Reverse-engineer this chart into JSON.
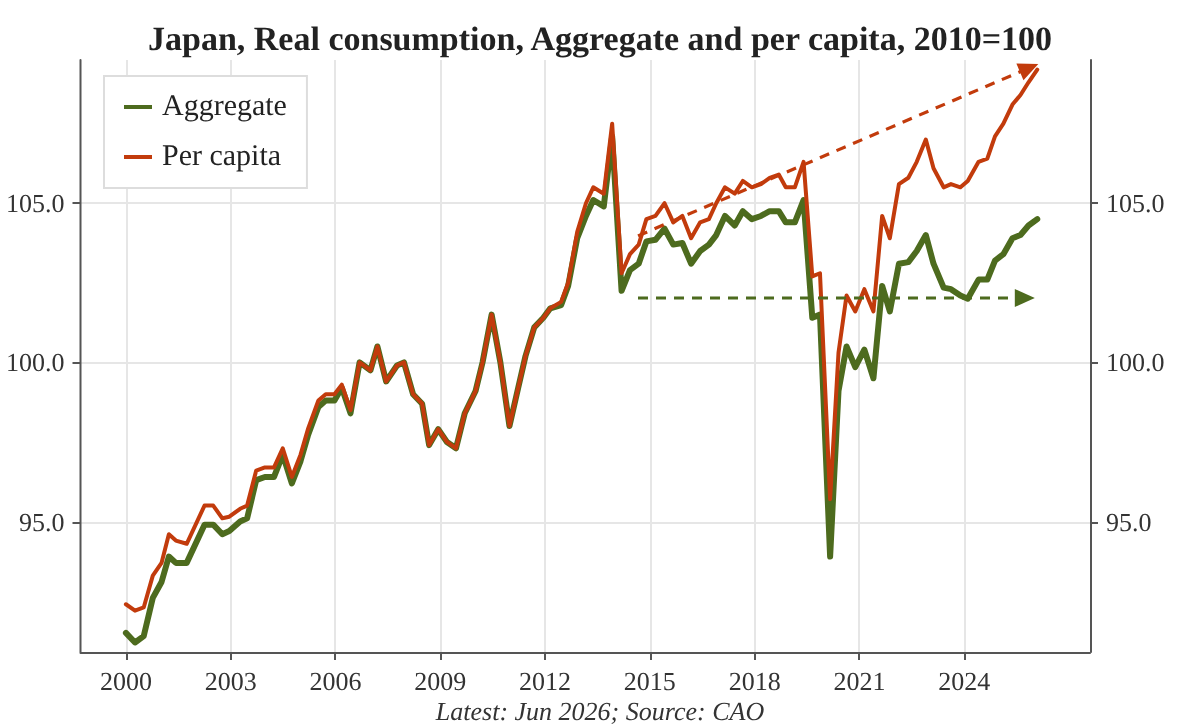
{
  "chart_data": {
    "type": "line",
    "title": "Japan, Real consumption, Aggregate and per capita, 2010=100",
    "annotations": [
      "Latest: Jun 2026; Source: CAO"
    ],
    "x": [
      2000.0,
      2000.26,
      2000.51,
      2000.77,
      2001.02,
      2001.23,
      2001.43,
      2001.74,
      2002.25,
      2002.5,
      2002.76,
      2002.96,
      2003.27,
      2003.47,
      2003.73,
      2003.98,
      2004.24,
      2004.49,
      2004.75,
      2005.0,
      2005.21,
      2005.51,
      2005.72,
      2005.97,
      2006.18,
      2006.43,
      2006.69,
      2007.0,
      2007.2,
      2007.45,
      2007.76,
      2007.96,
      2008.22,
      2008.48,
      2008.68,
      2008.94,
      2009.19,
      2009.45,
      2009.7,
      2010.01,
      2010.21,
      2010.47,
      2010.72,
      2010.98,
      2011.23,
      2011.44,
      2011.69,
      2011.95,
      2012.15,
      2012.46,
      2012.66,
      2012.92,
      2013.17,
      2013.38,
      2013.68,
      2013.92,
      2014.19,
      2014.43,
      2014.68,
      2014.9,
      2015.16,
      2015.42,
      2015.67,
      2015.93,
      2016.18,
      2016.44,
      2016.69,
      2016.9,
      2017.15,
      2017.43,
      2017.66,
      2017.92,
      2018.18,
      2018.43,
      2018.69,
      2018.89,
      2019.15,
      2019.4,
      2019.65,
      2019.87,
      2020.16,
      2020.4,
      2020.63,
      2020.88,
      2021.14,
      2021.4,
      2021.65,
      2021.87,
      2022.13,
      2022.4,
      2022.64,
      2022.9,
      2023.12,
      2023.41,
      2023.62,
      2023.89,
      2024.1,
      2024.41,
      2024.66,
      2024.88,
      2025.12,
      2025.38,
      2025.61,
      2025.84,
      2026.09
    ],
    "series": [
      {
        "name": "Aggregate",
        "color": "#4d6b1e",
        "values": [
          91.5,
          91.2,
          91.4,
          92.6,
          93.1,
          93.9,
          93.7,
          93.7,
          94.9,
          94.9,
          94.6,
          94.7,
          95.0,
          95.1,
          96.3,
          96.4,
          96.4,
          97.1,
          96.2,
          96.9,
          97.7,
          98.6,
          98.8,
          98.8,
          99.2,
          98.4,
          100.0,
          99.75,
          100.5,
          99.4,
          99.9,
          100.0,
          99.0,
          98.7,
          97.4,
          97.9,
          97.5,
          97.3,
          98.4,
          99.1,
          100.0,
          101.5,
          100.0,
          98.0,
          99.2,
          100.2,
          101.1,
          101.4,
          101.7,
          101.8,
          102.4,
          103.9,
          104.6,
          105.1,
          104.9,
          107.1,
          102.25,
          102.9,
          103.1,
          103.8,
          103.85,
          104.2,
          103.7,
          103.75,
          103.1,
          103.5,
          103.7,
          104.0,
          104.6,
          104.3,
          104.75,
          104.5,
          104.6,
          104.75,
          104.75,
          104.4,
          104.4,
          105.1,
          101.4,
          101.5,
          93.9,
          99.1,
          100.5,
          99.85,
          100.4,
          99.5,
          102.4,
          101.6,
          103.1,
          103.15,
          103.5,
          104.0,
          103.1,
          102.35,
          102.3,
          102.1,
          102.0,
          102.6,
          102.6,
          103.2,
          103.4,
          103.9,
          104.0,
          104.3,
          104.5
        ]
      },
      {
        "name": "Per capita",
        "color": "#c23b0c",
        "values": [
          92.4,
          92.2,
          92.3,
          93.3,
          93.7,
          94.6,
          94.4,
          94.3,
          95.5,
          95.5,
          95.1,
          95.15,
          95.4,
          95.5,
          96.6,
          96.7,
          96.7,
          97.3,
          96.4,
          97.1,
          97.9,
          98.8,
          99.0,
          99.0,
          99.3,
          98.5,
          100.0,
          99.75,
          100.5,
          99.4,
          99.9,
          100.0,
          99.0,
          98.7,
          97.4,
          97.9,
          97.5,
          97.3,
          98.4,
          99.1,
          100.0,
          101.5,
          100.0,
          98.0,
          99.2,
          100.2,
          101.1,
          101.4,
          101.7,
          101.9,
          102.5,
          104.1,
          105.0,
          105.5,
          105.3,
          107.5,
          102.8,
          103.4,
          103.7,
          104.5,
          104.6,
          105.0,
          104.4,
          104.6,
          103.9,
          104.4,
          104.5,
          105.0,
          105.5,
          105.3,
          105.7,
          105.5,
          105.6,
          105.8,
          105.9,
          105.5,
          105.5,
          106.3,
          102.7,
          102.8,
          95.7,
          100.3,
          102.1,
          101.6,
          102.3,
          101.6,
          104.6,
          103.9,
          105.6,
          105.8,
          106.3,
          107.0,
          106.1,
          105.5,
          105.6,
          105.5,
          105.7,
          106.3,
          106.4,
          107.1,
          107.5,
          108.1,
          108.4,
          108.8,
          109.2
        ]
      }
    ],
    "marker": "none",
    "xlim": [
      1998.7,
      2027.6
    ],
    "xticks": [
      2000,
      2003,
      2006,
      2009,
      2012,
      2015,
      2018,
      2021,
      2024
    ],
    "ylim": [
      90.9,
      109.5
    ],
    "yticks": [
      {
        "value": 95,
        "label": "95.0"
      },
      {
        "value": 100,
        "label": "100.0"
      },
      {
        "value": 105,
        "label": "105.0"
      }
    ],
    "y2lim": [
      90.9,
      109.5
    ],
    "y2ticks": [
      {
        "value": 95,
        "label": "95.0"
      },
      {
        "value": 100,
        "label": "100.0"
      },
      {
        "value": 105,
        "label": "105.0"
      }
    ],
    "grid": true,
    "legend": "top left"
  }
}
